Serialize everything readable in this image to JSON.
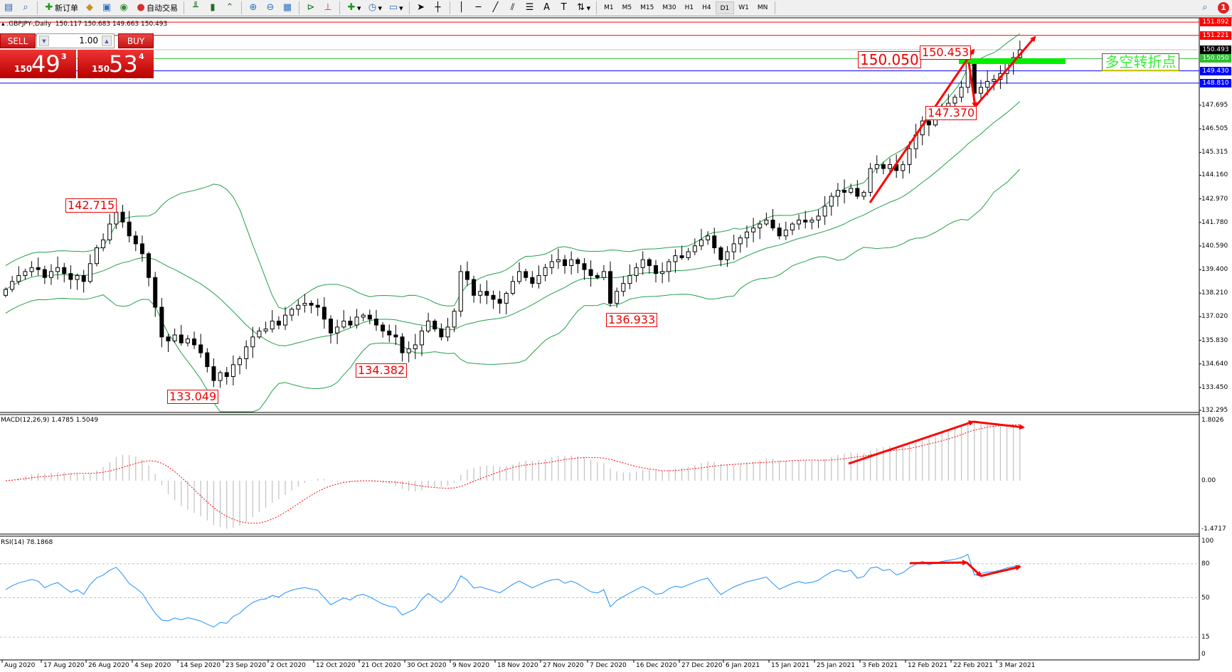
{
  "toolbar": {
    "new_order_label": "新订单",
    "auto_trading_label": "自动交易",
    "timeframes": [
      "M1",
      "M5",
      "M15",
      "M30",
      "H1",
      "H4",
      "D1",
      "W1",
      "MN"
    ],
    "active_timeframe": "D1",
    "notification_count": "1",
    "icons": [
      "new-chart-icon",
      "profiles-icon",
      "new-order-icon",
      "metaeditor-icon",
      "navigator-icon",
      "signals-icon",
      "auto-trading-icon",
      "bar-chart-icon",
      "candlestick-icon",
      "line-chart-icon",
      "zoom-in-icon",
      "zoom-out-icon",
      "tile-windows-icon",
      "autoscroll-icon",
      "chart-shift-icon",
      "indicators-icon",
      "periods-icon",
      "templates-icon",
      "cursor-icon",
      "crosshair-icon",
      "vertical-line-icon",
      "horizontal-line-icon",
      "trendline-icon",
      "equidistant-channel-icon",
      "fibonacci-icon",
      "text-icon",
      "text-label-icon",
      "arrows-icon",
      "search-icon",
      "notification-icon"
    ]
  },
  "chart_header": {
    "symbol": ".GBPJPY-,Daily",
    "ohlc": "150.117 150.683 149.663 150.493"
  },
  "trade_panel": {
    "sell_label": "SELL",
    "buy_label": "BUY",
    "lot": "1.00",
    "sell_price": {
      "prefix": "150",
      "big": "49",
      "sup": "3"
    },
    "buy_price": {
      "prefix": "150",
      "big": "53",
      "sup": "4"
    }
  },
  "colors": {
    "bullish_candle": "#ffffff",
    "bearish_candle": "#000000",
    "bollinger": "#22a04a",
    "macd_hist": "#c0c0c0",
    "macd_signal": "#ff0000",
    "rsi": "#1e90ff",
    "annotation": "#ff0000",
    "turn_zone": "#00ee00"
  },
  "price_axis": [
    "147.695",
    "146.505",
    "145.315",
    "144.160",
    "142.970",
    "141.780",
    "140.590",
    "139.400",
    "138.210",
    "137.020",
    "135.830",
    "134.640",
    "133.450",
    "132.295"
  ],
  "horizontal_lines": [
    {
      "price": "151.892",
      "color": "#ff0000"
    },
    {
      "price": "151.221",
      "color": "#ff0000"
    },
    {
      "price": "150.493",
      "color": "#c0c0c0",
      "tag_color": "#000000"
    },
    {
      "price": "150.050",
      "color": "#33bb33"
    },
    {
      "price": "149.430",
      "color": "#0000ff"
    },
    {
      "price": "148.810",
      "color": "#0000ff"
    }
  ],
  "annotations": {
    "labels": [
      "142.715",
      "133.049",
      "134.382",
      "136.933",
      "150.050",
      "150.453",
      "147.370"
    ],
    "turn_point_text": "多空转折点"
  },
  "macd": {
    "title": "MACD(12,26,9) 1.4785 1.5049",
    "axis": [
      "1.8026",
      "0.00",
      "-1.4717"
    ],
    "range": [
      -1.4717,
      1.8026
    ]
  },
  "rsi": {
    "title": "RSI(14) 78.1868",
    "axis": [
      "100",
      "80",
      "50",
      "15",
      "0"
    ],
    "levels": [
      80,
      50,
      15
    ]
  },
  "date_axis": [
    "Aug 2020",
    "17 Aug 2020",
    "26 Aug 2020",
    "4 Sep 2020",
    "14 Sep 2020",
    "23 Sep 2020",
    "2 Oct 2020",
    "12 Oct 2020",
    "21 Oct 2020",
    "30 Oct 2020",
    "9 Nov 2020",
    "18 Nov 2020",
    "27 Nov 2020",
    "7 Dec 2020",
    "16 Dec 2020",
    "27 Dec 2020",
    "6 Jan 2021",
    "15 Jan 2021",
    "25 Jan 2021",
    "3 Feb 2021",
    "12 Feb 2021",
    "22 Feb 2021",
    "3 Mar 2021"
  ],
  "chart_data": {
    "type": "candlestick",
    "symbol": "GBPJPY",
    "timeframe": "Daily",
    "ylim": [
      132.295,
      151.892
    ],
    "indicators": [
      "Bollinger Bands",
      "MACD(12,26,9)",
      "RSI(14)"
    ],
    "closes": [
      138.4,
      138.8,
      139.1,
      139.3,
      139.5,
      139.4,
      139.0,
      139.3,
      139.5,
      139.2,
      138.9,
      139.1,
      138.8,
      139.7,
      140.5,
      140.9,
      141.7,
      142.3,
      141.8,
      141.1,
      140.7,
      140.2,
      139.0,
      137.5,
      136.0,
      135.8,
      136.1,
      135.7,
      135.9,
      135.6,
      135.2,
      134.5,
      133.8,
      134.2,
      134.0,
      134.6,
      134.9,
      135.5,
      136.0,
      136.3,
      136.4,
      136.8,
      136.6,
      137.1,
      137.4,
      137.6,
      137.7,
      137.6,
      137.5,
      136.9,
      136.2,
      136.5,
      136.8,
      136.6,
      137.0,
      137.1,
      136.9,
      136.6,
      136.3,
      136.1,
      136.0,
      135.2,
      135.4,
      135.6,
      136.3,
      136.8,
      136.4,
      136.0,
      136.5,
      137.3,
      139.3,
      138.9,
      138.1,
      138.3,
      138.1,
      137.9,
      137.7,
      138.2,
      138.8,
      139.3,
      139.0,
      138.7,
      139.1,
      139.5,
      139.8,
      139.9,
      139.6,
      139.9,
      139.7,
      139.4,
      139.1,
      139.0,
      139.3,
      137.7,
      138.3,
      138.7,
      139.1,
      139.5,
      139.9,
      139.6,
      139.2,
      139.3,
      139.8,
      140.1,
      140.0,
      140.3,
      140.6,
      140.9,
      141.1,
      140.5,
      139.9,
      140.3,
      140.7,
      141.0,
      141.3,
      141.5,
      141.7,
      141.9,
      141.5,
      141.1,
      141.4,
      141.7,
      141.9,
      141.8,
      141.9,
      142.1,
      142.6,
      143.1,
      143.4,
      143.3,
      143.5,
      143.1,
      143.3,
      144.5,
      144.7,
      144.5,
      144.7,
      144.4,
      144.7,
      145.5,
      146.2,
      146.9,
      146.7,
      147.1,
      147.5,
      147.8,
      148.1,
      148.6,
      149.8,
      148.3,
      148.6,
      148.9,
      149.0,
      149.3,
      149.8,
      150.1,
      150.493
    ]
  }
}
